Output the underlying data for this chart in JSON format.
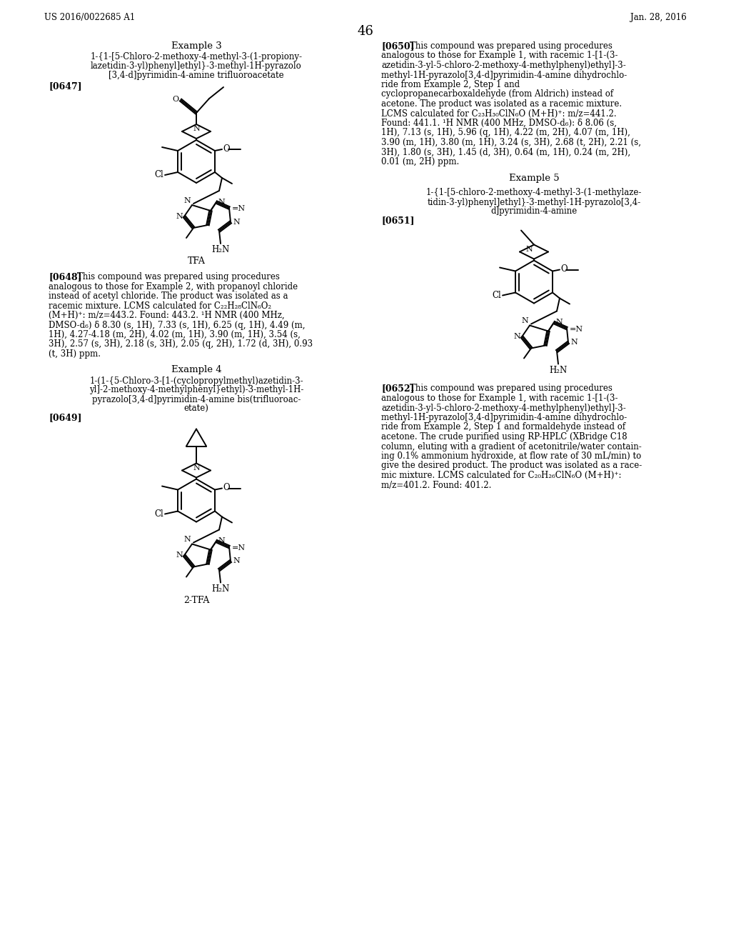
{
  "page_header_left": "US 2016/0022685 A1",
  "page_header_right": "Jan. 28, 2016",
  "page_number": "46",
  "background_color": "#ffffff",
  "text_color": "#000000",
  "example3_title": "Example 3",
  "example3_line1": "1-{1-[5-Chloro-2-methoxy-4-methyl-3-(1-propiony-",
  "example3_line2": "lazetidin-3-yl)phenyl]ethyl}-3-methyl-1H-pyrazolo",
  "example3_line3": "[3,4-d]pyrimidin-4-amine trifluoroacetate",
  "example3_ref": "[0647]",
  "example3_label": "TFA",
  "para0648_ref": "[0648]",
  "para0648_lines": [
    "This compound was prepared using procedures",
    "analogous to those for Example 2, with propanoyl chloride",
    "instead of acetyl chloride. The product was isolated as a",
    "racemic mixture. LCMS calculated for C₂₂H₂₈ClN₆O₂",
    "(M+H)⁺: m/z=443.2. Found: 443.2. ¹H NMR (400 MHz,",
    "DMSO-d₆) δ 8.30 (s, 1H), 7.33 (s, 1H), 6.25 (q, 1H), 4.49 (m,",
    "1H), 4.27-4.18 (m, 2H), 4.02 (m, 1H), 3.90 (m, 1H), 3.54 (s,",
    "3H), 2.57 (s, 3H), 2.18 (s, 3H), 2.05 (q, 2H), 1.72 (d, 3H), 0.93",
    "(t, 3H) ppm."
  ],
  "example4_title": "Example 4",
  "example4_line1": "1-(1-{5-Chloro-3-[1-(cyclopropylmethyl)azetidin-3-",
  "example4_line2": "yl]-2-methoxy-4-methylphenyl}ethyl)-3-methyl-1H-",
  "example4_line3": "pyrazolo[3,4-d]pyrimidin-4-amine bis(trifluoroac-",
  "example4_line4": "etate)",
  "example4_ref": "[0649]",
  "example4_label": "2-TFA",
  "para0650_ref": "[0650]",
  "para0650_lines": [
    "This compound was prepared using procedures",
    "analogous to those for Example 1, with racemic 1-[1-(3-",
    "azetidin-3-yl-5-chloro-2-methoxy-4-methylphenyl)ethyl]-3-",
    "methyl-1H-pyrazolo[3,4-d]pyrimidin-4-amine dihydrochlo-",
    "ride from Example 2, Step 1 and",
    "cyclopropanecarboxaldehyde (from Aldrich) instead of",
    "acetone. The product was isolated as a racemic mixture.",
    "LCMS calculated for C₂₃H₃₀ClN₆O (M+H)⁺: m/z=441.2.",
    "Found: 441.1. ¹H NMR (400 MHz, DMSO-d₆): δ 8.06 (s,",
    "1H), 7.13 (s, 1H), 5.96 (q, 1H), 4.22 (m, 2H), 4.07 (m, 1H),",
    "3.90 (m, 1H), 3.80 (m, 1H), 3.24 (s, 3H), 2.68 (t, 2H), 2.21 (s,",
    "3H), 1.80 (s, 3H), 1.45 (d, 3H), 0.64 (m, 1H), 0.24 (m, 2H),",
    "0.01 (m, 2H) ppm."
  ],
  "example5_title": "Example 5",
  "example5_line1": "1-{1-[5-chloro-2-methoxy-4-methyl-3-(1-methylaze-",
  "example5_line2": "tidin-3-yl)phenyl]ethyl}-3-methyl-1H-pyrazolo[3,4-",
  "example5_line3": "d]pyrimidin-4-amine",
  "example5_ref": "[0651]",
  "para0652_ref": "[0652]",
  "para0652_lines": [
    "This compound was prepared using procedures",
    "analogous to those for Example 1, with racemic 1-[1-(3-",
    "azetidin-3-yl-5-chloro-2-methoxy-4-methylphenyl)ethyl]-3-",
    "methyl-1H-pyrazolo[3,4-d]pyrimidin-4-amine dihydrochlo-",
    "ride from Example 2, Step 1 and formaldehyde instead of",
    "acetone. The crude purified using RP-HPLC (XBridge C18",
    "column, eluting with a gradient of acetonitrile/water contain-",
    "ing 0.1% ammonium hydroxide, at flow rate of 30 mL/min) to",
    "give the desired product. The product was isolated as a race-",
    "mic mixture. LCMS calculated for C₂₀H₂₆ClN₆O (M+H)⁺:",
    "m/z=401.2. Found: 401.2."
  ]
}
